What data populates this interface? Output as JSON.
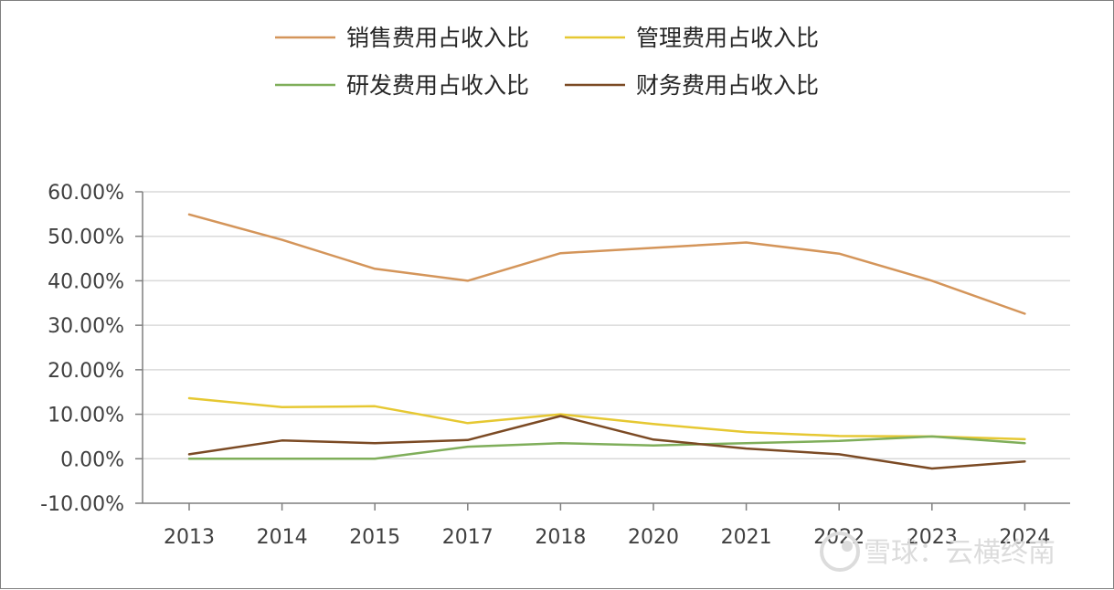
{
  "chart_data": {
    "type": "line",
    "x": [
      "2013",
      "2014",
      "2015",
      "2017",
      "2018",
      "2020",
      "2021",
      "2022",
      "2023",
      "2024"
    ],
    "series": [
      {
        "name": "销售费用占收入比",
        "color": "#d4955a",
        "values": [
          0.549,
          0.492,
          0.427,
          0.4,
          0.462,
          0.474,
          0.486,
          0.461,
          0.4,
          0.326
        ]
      },
      {
        "name": "管理费用占收入比",
        "color": "#e6c832",
        "values": [
          0.136,
          0.116,
          0.118,
          0.08,
          0.1,
          0.078,
          0.06,
          0.051,
          0.05,
          0.044
        ]
      },
      {
        "name": "研发费用占收入比",
        "color": "#7fae5a",
        "values": [
          0.0,
          0.0,
          0.0,
          0.027,
          0.035,
          0.03,
          0.035,
          0.04,
          0.05,
          0.035
        ]
      },
      {
        "name": "财务费用占收入比",
        "color": "#7b4a24",
        "values": [
          0.01,
          0.041,
          0.035,
          0.042,
          0.096,
          0.043,
          0.023,
          0.01,
          -0.022,
          -0.006
        ]
      }
    ],
    "y_ticks": [
      "60.00%",
      "50.00%",
      "40.00%",
      "30.00%",
      "20.00%",
      "10.00%",
      "0.00%",
      "-10.00%"
    ],
    "y_tick_values": [
      0.6,
      0.5,
      0.4,
      0.3,
      0.2,
      0.1,
      0.0,
      -0.1
    ],
    "ylim": [
      -0.1,
      0.6
    ],
    "grid": true,
    "legend": "top"
  },
  "watermark": {
    "text": "雪球：云横终南",
    "icon": "snowball-logo-icon"
  }
}
